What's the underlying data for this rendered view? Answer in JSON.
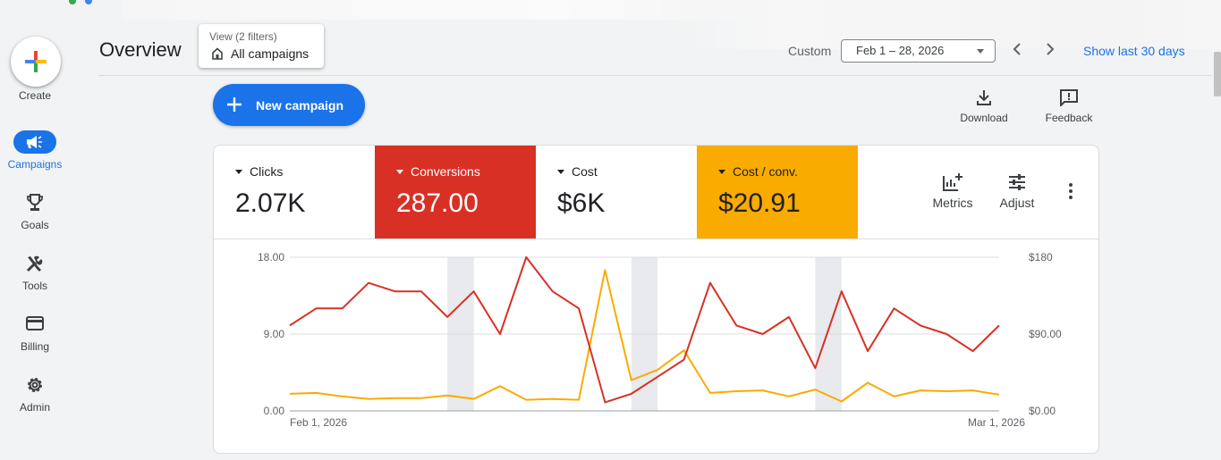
{
  "nav": {
    "create_label": "Create",
    "items": [
      {
        "label": "Campaigns",
        "icon": "megaphone-icon",
        "active": true
      },
      {
        "label": "Goals",
        "icon": "trophy-icon"
      },
      {
        "label": "Tools",
        "icon": "tools-icon"
      },
      {
        "label": "Billing",
        "icon": "credit-card-icon"
      },
      {
        "label": "Admin",
        "icon": "gear-icon"
      }
    ]
  },
  "header": {
    "title": "Overview",
    "view_filter_sub": "View (2 filters)",
    "view_filter_main": "All campaigns",
    "date_range_label": "Custom",
    "date_range_value": "Feb 1 – 28, 2026",
    "show_last_link": "Show last 30 days"
  },
  "actions": {
    "new_campaign": "New campaign",
    "download": "Download",
    "feedback": "Feedback"
  },
  "metrics": [
    {
      "name": "Clicks",
      "value": "2.07K",
      "bg": "#ffffff",
      "fg": "#202124"
    },
    {
      "name": "Conversions",
      "value": "287.00",
      "bg": "#d93025",
      "fg": "#ffffff"
    },
    {
      "name": "Cost",
      "value": "$6K",
      "bg": "#ffffff",
      "fg": "#202124"
    },
    {
      "name": "Cost / conv.",
      "value": "$20.91",
      "bg": "#f9ab00",
      "fg": "#202124"
    }
  ],
  "metric_tools": {
    "metrics": "Metrics",
    "adjust": "Adjust"
  },
  "colors": {
    "accent": "#1a73e8",
    "conversions": "#d93025",
    "cost_per_conv": "#f9ab00"
  },
  "chart_data": {
    "type": "line",
    "x_start_label": "Feb 1, 2026",
    "x_end_label": "Mar 1, 2026",
    "left_ticks": [
      "0.00",
      "9.00",
      "18.00"
    ],
    "right_ticks": [
      "$0.00",
      "$90.00",
      "$180"
    ],
    "ylim_left": [
      0,
      18
    ],
    "ylim_right": [
      0,
      180
    ],
    "weekend_bands": [
      [
        6,
        7
      ],
      [
        13,
        14
      ],
      [
        20,
        21
      ],
      [
        27,
        28
      ]
    ],
    "series": [
      {
        "name": "Conversions",
        "axis": "left",
        "color": "#d93025",
        "values": [
          10,
          12,
          12,
          15,
          14,
          14,
          11,
          14,
          9,
          18,
          14,
          12,
          1,
          2,
          4,
          6,
          15,
          10,
          9,
          11,
          5,
          14,
          7,
          12,
          10,
          9,
          7,
          10
        ]
      },
      {
        "name": "Cost / conv.",
        "axis": "right",
        "color": "#f9ab00",
        "values": [
          20,
          21,
          17,
          14,
          15,
          15,
          18,
          14,
          29,
          13,
          14,
          13,
          165,
          36,
          48,
          71,
          21,
          23,
          24,
          17,
          25,
          11,
          33,
          17,
          24,
          23,
          24,
          19
        ]
      }
    ]
  }
}
